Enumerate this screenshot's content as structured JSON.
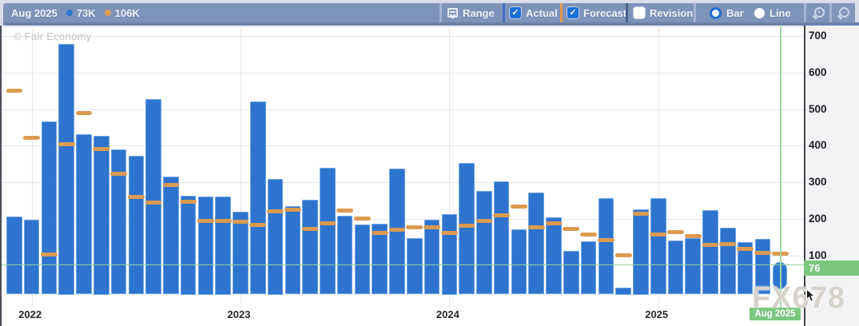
{
  "header": {
    "legend_date": "Aug 2025",
    "legend_actual": "73K",
    "legend_forecast": "106K",
    "range_label": "Range",
    "actual_label": "Actual",
    "forecast_label": "Forecast",
    "revision_label": "Revision",
    "bar_label": "Bar",
    "line_label": "Line",
    "check_glyph": "✓",
    "zoom_in_glyph": "+",
    "zoom_out_glyph": "–",
    "icons": [
      "calendar-icon",
      "zoom-in-icon",
      "zoom-out-icon"
    ]
  },
  "chart": {
    "copyright": "© Fair Economy",
    "brand_watermark": "FX678",
    "y_axis_badge": "76",
    "x_axis_badge": "Aug 2025"
  },
  "colors": {
    "toolbar": "#7e93ba",
    "actual": "#2e74cf",
    "forecast": "#dc9a50",
    "crosshair": "#8fd096",
    "badge": "#7bc77e"
  },
  "chart_data": {
    "type": "bar",
    "x": [
      "Dec 2021",
      "Jan 2022",
      "Feb 2022",
      "Mar 2022",
      "Apr 2022",
      "May 2022",
      "Jun 2022",
      "Jul 2022",
      "Aug 2022",
      "Sep 2022",
      "Oct 2022",
      "Nov 2022",
      "Dec 2022",
      "Jan 2023",
      "Feb 2023",
      "Mar 2023",
      "Apr 2023",
      "May 2023",
      "Jun 2023",
      "Jul 2023",
      "Aug 2023",
      "Sep 2023",
      "Oct 2023",
      "Nov 2023",
      "Dec 2023",
      "Jan 2024",
      "Feb 2024",
      "Mar 2024",
      "Apr 2024",
      "May 2024",
      "Jun 2024",
      "Jul 2024",
      "Aug 2024",
      "Sep 2024",
      "Oct 2024",
      "Nov 2024",
      "Dec 2024",
      "Jan 2025",
      "Feb 2025",
      "Mar 2025",
      "Apr 2025",
      "May 2025",
      "Jun 2025",
      "Jul 2025",
      "Aug 2025"
    ],
    "series": [
      {
        "name": "Actual",
        "color": "#2e74cf",
        "values": [
          207,
          198,
          467,
          678,
          431,
          428,
          390,
          372,
          528,
          315,
          263,
          261,
          262,
          220,
          521,
          309,
          234,
          253,
          340,
          209,
          185,
          186,
          338,
          147,
          198,
          214,
          353,
          276,
          302,
          172,
          271,
          205,
          112,
          138,
          256,
          12,
          227,
          256,
          141,
          148,
          223,
          176,
          137,
          145,
          73
        ]
      },
      {
        "name": "Forecast",
        "color": "#dc9a50",
        "values": [
          550,
          422,
          102,
          405,
          490,
          390,
          323,
          260,
          245,
          293,
          247,
          194,
          194,
          193,
          183,
          220,
          225,
          172,
          187,
          222,
          200,
          162,
          171,
          176,
          176,
          162,
          182,
          194,
          210,
          234,
          176,
          187,
          172,
          158,
          142,
          100,
          214,
          158,
          163,
          154,
          129,
          131,
          119,
          107,
          106
        ]
      }
    ],
    "ylim": [
      -15,
      730
    ],
    "yticks": [
      100,
      200,
      300,
      400,
      500,
      600,
      700
    ],
    "year_ticks": [
      {
        "label": "2022",
        "index": 1
      },
      {
        "label": "2023",
        "index": 13
      },
      {
        "label": "2024",
        "index": 25
      },
      {
        "label": "2025",
        "index": 37
      }
    ],
    "crosshair": {
      "index": 44,
      "value": 76,
      "x_label": "Aug 2025"
    },
    "grid": true,
    "legend_position": "top-left"
  }
}
